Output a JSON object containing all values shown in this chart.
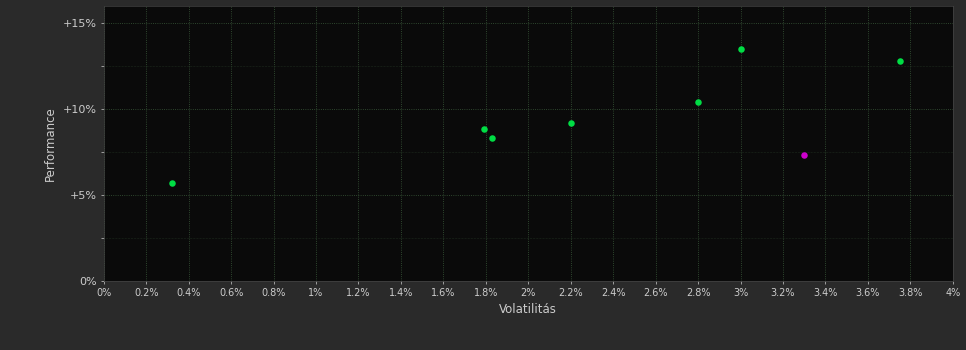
{
  "outer_bg_color": "#2a2a2a",
  "plot_bg_color": "#0a0a0a",
  "grid_color": "#3a5a3a",
  "axis_label_color": "#cccccc",
  "tick_label_color": "#cccccc",
  "xlabel": "Volatilitás",
  "ylabel": "Performance",
  "xlim": [
    0,
    0.04
  ],
  "ylim": [
    0,
    0.16
  ],
  "xticks": [
    0.0,
    0.002,
    0.004,
    0.006,
    0.008,
    0.01,
    0.012,
    0.014,
    0.016,
    0.018,
    0.02,
    0.022,
    0.024,
    0.026,
    0.028,
    0.03,
    0.032,
    0.034,
    0.036,
    0.038,
    0.04
  ],
  "yticks": [
    0.0,
    0.05,
    0.1,
    0.15
  ],
  "ytick_labels": [
    "0%",
    "+5%",
    "+10%",
    "+15%"
  ],
  "xtick_labels": [
    "0%",
    "0.2%",
    "0.4%",
    "0.6%",
    "0.8%",
    "1%",
    "1.2%",
    "1.4%",
    "1.6%",
    "1.8%",
    "2%",
    "2.2%",
    "2.4%",
    "2.6%",
    "2.8%",
    "3%",
    "3.2%",
    "3.4%",
    "3.6%",
    "3.8%",
    "4%"
  ],
  "green_points": [
    [
      0.0032,
      0.057
    ],
    [
      0.0179,
      0.088
    ],
    [
      0.0183,
      0.083
    ],
    [
      0.022,
      0.092
    ],
    [
      0.028,
      0.104
    ],
    [
      0.03,
      0.135
    ],
    [
      0.0375,
      0.128
    ]
  ],
  "magenta_points": [
    [
      0.033,
      0.073
    ]
  ],
  "green_color": "#00dd44",
  "magenta_color": "#cc00cc",
  "marker_size": 22,
  "figsize": [
    9.66,
    3.5
  ],
  "dpi": 100
}
